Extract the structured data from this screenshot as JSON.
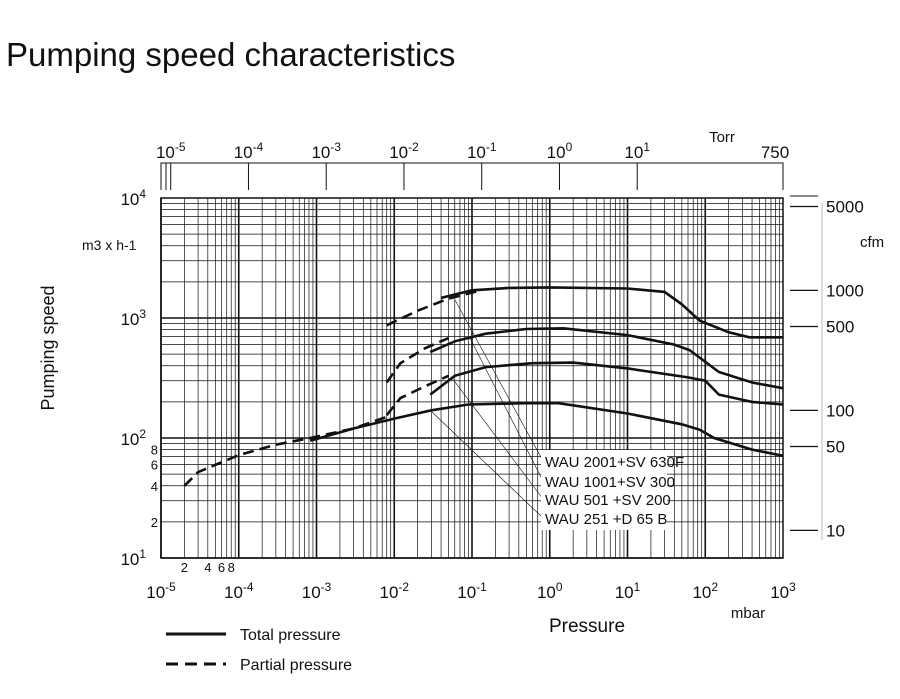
{
  "chart_data": {
    "type": "line",
    "title": "Pumping speed characteristics",
    "xlabel": "Pressure",
    "xunit": "mbar",
    "ylabel": "Pumping speed",
    "yunit": "m3 x h-1",
    "xscale": "log",
    "yscale": "log",
    "xlim": [
      1e-05,
      1000
    ],
    "ylim": [
      10,
      10000
    ],
    "x_ticks": [
      {
        "v": 1e-05,
        "b": "10",
        "e": "-5"
      },
      {
        "v": 0.0001,
        "b": "10",
        "e": "-4"
      },
      {
        "v": 0.001,
        "b": "10",
        "e": "-3"
      },
      {
        "v": 0.01,
        "b": "10",
        "e": "-2"
      },
      {
        "v": 0.1,
        "b": "10",
        "e": "-1"
      },
      {
        "v": 1,
        "b": "10",
        "e": "0"
      },
      {
        "v": 10,
        "b": "10",
        "e": "1"
      },
      {
        "v": 100,
        "b": "10",
        "e": "2"
      },
      {
        "v": 1000,
        "b": "10",
        "e": "3"
      }
    ],
    "x_minor_labels": [
      {
        "v": 2e-05,
        "t": "2"
      },
      {
        "v": 4e-05,
        "t": "4"
      },
      {
        "v": 6e-05,
        "t": "6"
      },
      {
        "v": 8e-05,
        "t": "8"
      }
    ],
    "y_ticks": [
      {
        "v": 10,
        "b": "10",
        "e": "1"
      },
      {
        "v": 100,
        "b": "10",
        "e": "2"
      },
      {
        "v": 1000,
        "b": "10",
        "e": "3"
      },
      {
        "v": 10000,
        "b": "10",
        "e": "4"
      }
    ],
    "y_minor_labels": [
      {
        "v": 20,
        "t": "2"
      },
      {
        "v": 40,
        "t": "4"
      },
      {
        "v": 60,
        "t": "6"
      },
      {
        "v": 80,
        "t": "8"
      }
    ],
    "top_axis": {
      "unit": "Torr",
      "ticks": [
        {
          "v": 1e-05,
          "b": "10",
          "e": "-5"
        },
        {
          "v": 0.0001,
          "b": "10",
          "e": "-4"
        },
        {
          "v": 0.001,
          "b": "10",
          "e": "-3"
        },
        {
          "v": 0.01,
          "b": "10",
          "e": "-2"
        },
        {
          "v": 0.1,
          "b": "10",
          "e": "-1"
        },
        {
          "v": 1,
          "b": "10",
          "e": "0"
        },
        {
          "v": 10,
          "b": "10",
          "e": "1"
        },
        {
          "v": 750,
          "b": "750",
          "e": ""
        }
      ]
    },
    "right_axis": {
      "unit": "cfm",
      "ticks": [
        5000,
        1000,
        500,
        100,
        50,
        10
      ]
    },
    "series": [
      {
        "name": "WAU 2001+SV 630F",
        "total": [
          [
            0.04,
            1470
          ],
          [
            0.1,
            1700
          ],
          [
            0.3,
            1780
          ],
          [
            1,
            1800
          ],
          [
            10,
            1760
          ],
          [
            30,
            1650
          ],
          [
            50,
            1300
          ],
          [
            85,
            950
          ],
          [
            200,
            760
          ],
          [
            370,
            690
          ],
          [
            1000,
            690
          ]
        ],
        "partial": [
          [
            0.008,
            870
          ],
          [
            0.02,
            1150
          ],
          [
            0.05,
            1450
          ],
          [
            0.13,
            1700
          ]
        ]
      },
      {
        "name": "WAU 1001+SV 300",
        "total": [
          [
            0.029,
            520
          ],
          [
            0.06,
            640
          ],
          [
            0.15,
            740
          ],
          [
            0.5,
            810
          ],
          [
            1.5,
            820
          ],
          [
            10,
            720
          ],
          [
            40,
            600
          ],
          [
            63,
            540
          ],
          [
            150,
            355
          ],
          [
            400,
            290
          ],
          [
            1000,
            260
          ]
        ],
        "partial": [
          [
            0.008,
            290
          ],
          [
            0.012,
            420
          ],
          [
            0.025,
            560
          ],
          [
            0.05,
            680
          ]
        ]
      },
      {
        "name": "WAU 501  +SV 200",
        "total": [
          [
            0.029,
            230
          ],
          [
            0.06,
            330
          ],
          [
            0.15,
            390
          ],
          [
            0.6,
            420
          ],
          [
            2,
            425
          ],
          [
            10,
            380
          ],
          [
            60,
            320
          ],
          [
            100,
            300
          ],
          [
            150,
            230
          ],
          [
            400,
            200
          ],
          [
            1000,
            190
          ]
        ],
        "partial": [
          [
            0.008,
            155
          ],
          [
            0.012,
            215
          ],
          [
            0.025,
            270
          ],
          [
            0.05,
            330
          ]
        ]
      },
      {
        "name": "WAU 251  +D 65 B",
        "total": [
          [
            0.00083,
            95
          ],
          [
            0.003,
            120
          ],
          [
            0.01,
            145
          ],
          [
            0.03,
            170
          ],
          [
            0.09,
            190
          ],
          [
            0.5,
            195
          ],
          [
            1.3,
            195
          ],
          [
            10,
            160
          ],
          [
            50,
            130
          ],
          [
            85,
            117
          ],
          [
            130,
            100
          ],
          [
            400,
            80
          ],
          [
            1000,
            71
          ]
        ],
        "partial": [
          [
            2e-05,
            40
          ],
          [
            3e-05,
            52
          ],
          [
            0.0001,
            72
          ],
          [
            0.0003,
            88
          ],
          [
            0.00083,
            100
          ],
          [
            0.003,
            120
          ],
          [
            0.008,
            150
          ]
        ]
      }
    ],
    "legend": {
      "position": "bottom-left",
      "total": "Total pressure",
      "partial": "Partial pressure"
    },
    "grid": true
  }
}
